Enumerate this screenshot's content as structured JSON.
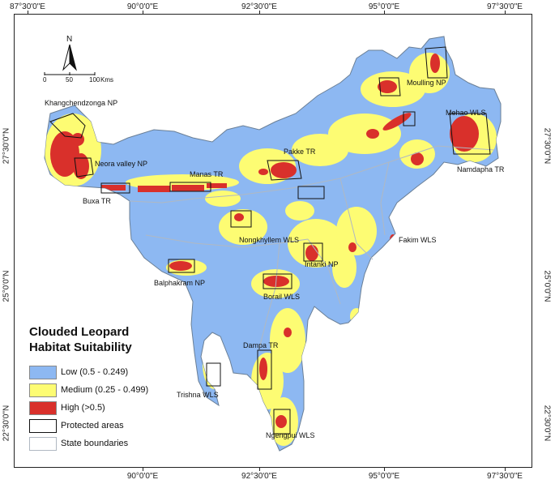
{
  "axes": {
    "top_ticks": [
      "87°30'0\"E",
      "90°0'0\"E",
      "92°30'0\"E",
      "95°0'0\"E",
      "97°30'0\"E"
    ],
    "bottom_ticks": [
      "90°0'0\"E",
      "92°30'0\"E",
      "95°0'0\"E",
      "97°30'0\"E"
    ],
    "left_ticks": [
      "27°30'0\"N",
      "25°0'0\"N",
      "22°30'0\"N"
    ],
    "right_ticks": [
      "27°30'0\"N",
      "25°0'0\"N",
      "22°30'0\"N"
    ]
  },
  "north_arrow": {
    "label": "N"
  },
  "scale_bar": {
    "labels": [
      "0",
      "50",
      "100"
    ],
    "unit": "Kms"
  },
  "protected_area_labels": [
    "Khangchendzonga NP",
    "Neora valley NP",
    "Buxa TR",
    "Manas TR",
    "Pakke TR",
    "Moulling NP",
    "Mehao WLS",
    "Namdapha TR",
    "Nongkhyllem WLS",
    "Fakim WLS",
    "Intanki NP",
    "Balphakram NP",
    "Borail WLS",
    "Dampa TR",
    "Trishna WLS",
    "Ngengpui WLS"
  ],
  "legend": {
    "title_line1": "Clouded Leopard",
    "title_line2": "Habitat Suitability",
    "items": [
      {
        "label": "Low (0.5 - 0.249)",
        "color": "#8db8f2"
      },
      {
        "label": "Medium (0.25 - 0.499)",
        "color": "#fdfc73"
      },
      {
        "label": "High (>0.5)",
        "color": "#d9302b"
      },
      {
        "label": "Protected areas",
        "color": "#ffffff"
      },
      {
        "label": "State boundaries",
        "color": "#ffffff"
      }
    ]
  },
  "colors": {
    "low": "#8db8f2",
    "medium": "#fdfc73",
    "high": "#d9302b",
    "boundary": "#7f8d9c"
  }
}
